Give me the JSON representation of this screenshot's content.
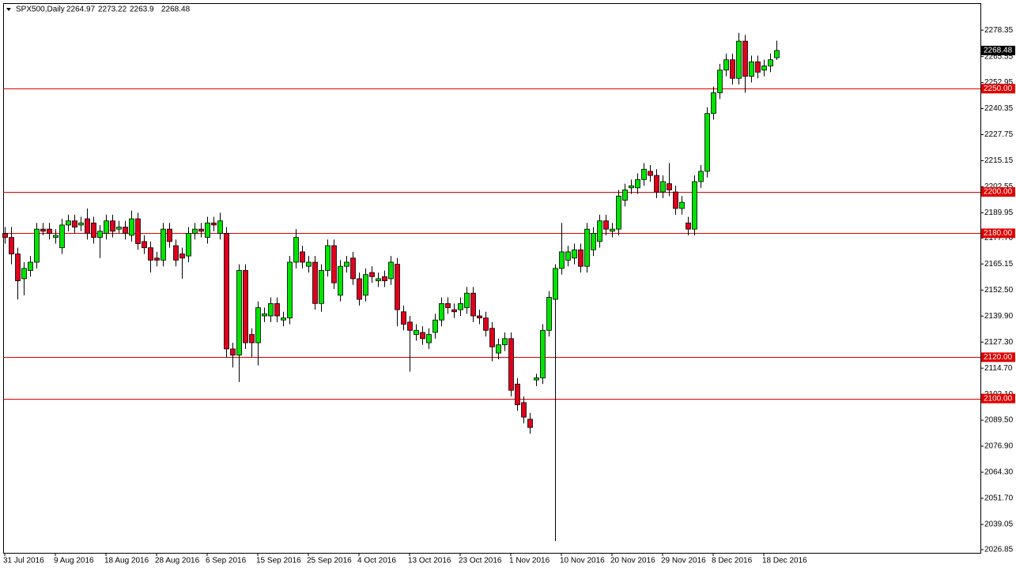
{
  "chart_data": {
    "type": "candlestick",
    "title": "SPX500,Daily",
    "categories": [
      "31 Jul 2016",
      null,
      null,
      null,
      null,
      null,
      null,
      null,
      "9 Aug 2016",
      null,
      null,
      null,
      null,
      null,
      null,
      null,
      "18 Aug 2016",
      null,
      null,
      null,
      null,
      null,
      null,
      null,
      "28 Aug 2016",
      null,
      null,
      null,
      null,
      null,
      null,
      null,
      "6 Sep 2016",
      null,
      null,
      null,
      null,
      null,
      null,
      null,
      "15 Sep 2016",
      null,
      null,
      null,
      null,
      null,
      null,
      null,
      "25 Sep 2016",
      null,
      null,
      null,
      null,
      null,
      null,
      null,
      "4 Oct 2016",
      null,
      null,
      null,
      null,
      null,
      null,
      null,
      "13 Oct 2016",
      null,
      null,
      null,
      null,
      null,
      null,
      null,
      "23 Oct 2016",
      null,
      null,
      null,
      null,
      null,
      null,
      null,
      "1 Nov 2016",
      null,
      null,
      null,
      null,
      null,
      null,
      null,
      "10 Nov 2016",
      null,
      null,
      null,
      null,
      null,
      null,
      null,
      "20 Nov 2016",
      null,
      null,
      null,
      null,
      null,
      null,
      null,
      "29 Nov 2016",
      null,
      null,
      null,
      null,
      null,
      null,
      null,
      "8 Dec 2016",
      null,
      null,
      null,
      null,
      null,
      null,
      null,
      "18 Dec 2016",
      null,
      null
    ],
    "open": [
      2180,
      2178,
      2170,
      2158,
      2162,
      2166,
      2182,
      2182,
      2178,
      2173,
      2184,
      2186,
      2184,
      2187,
      2185,
      2178,
      2180,
      2186,
      2182,
      2183,
      2179,
      2187,
      2176,
      2173,
      2168,
      2167,
      2182,
      2174,
      2170,
      2169,
      2180,
      2182,
      2178,
      2185,
      2180,
      2180,
      2124,
      2121,
      2162,
      2131,
      2127,
      2140,
      2140,
      2146,
      2138,
      2139,
      2166,
      2171,
      2164,
      2166,
      2146,
      2162,
      2174,
      2150,
      2164,
      2168,
      2158,
      2150,
      2161,
      2157,
      2159,
      2158,
      2165,
      2142,
      2137,
      2131,
      2132,
      2127,
      2132,
      2138,
      2146,
      2143,
      2143,
      2144,
      2151,
      2140,
      2139,
      2134,
      2122,
      2126,
      2129,
      2107,
      2098,
      2090,
      2109,
      2110,
      2133,
      2148,
      2163,
      2167,
      2168,
      2172,
      2164,
      2172,
      2176,
      2186,
      2181,
      2182,
      2196,
      2202,
      2202,
      2206,
      2210,
      2208,
      2200,
      2204,
      2200,
      2192,
      2185,
      2182,
      2205,
      2210,
      2238,
      2248,
      2259,
      2264,
      2255,
      2273,
      2256,
      2263,
      2259,
      2261,
      2264.97
    ],
    "high": [
      2183,
      2183,
      2173,
      2166,
      2169,
      2185,
      2185,
      2185,
      2182,
      2187,
      2189,
      2189,
      2188,
      2192,
      2188,
      2184,
      2189,
      2189,
      2186,
      2186,
      2191,
      2190,
      2179,
      2176,
      2171,
      2185,
      2185,
      2177,
      2173,
      2183,
      2185,
      2185,
      2188,
      2188,
      2190,
      2183,
      2127,
      2165,
      2165,
      2134,
      2147,
      2144,
      2149,
      2149,
      2142,
      2169,
      2182,
      2174,
      2169,
      2169,
      2165,
      2177,
      2177,
      2167,
      2169,
      2171,
      2161,
      2163,
      2164,
      2161,
      2162,
      2169,
      2168,
      2145,
      2140,
      2136,
      2135,
      2134,
      2141,
      2149,
      2149,
      2146,
      2149,
      2154,
      2154,
      2143,
      2142,
      2137,
      2129,
      2132,
      2132,
      2110,
      2101,
      2093,
      2112,
      2136,
      2152,
      2165,
      2185,
      2174,
      2175,
      2175,
      2185,
      2183,
      2189,
      2189,
      2185,
      2201,
      2204,
      2206,
      2209,
      2214,
      2213,
      2211,
      2208,
      2214,
      2203,
      2198,
      2188,
      2208,
      2213,
      2241,
      2251,
      2262,
      2267,
      2267,
      2277,
      2276,
      2266,
      2266,
      2264,
      2267,
      2273.22
    ],
    "low": [
      2175,
      2165,
      2148,
      2150,
      2159,
      2163,
      2179,
      2177,
      2175,
      2170,
      2181,
      2180,
      2181,
      2177,
      2175,
      2168,
      2177,
      2178,
      2180,
      2177,
      2176,
      2172,
      2170,
      2161,
      2164,
      2164,
      2173,
      2164,
      2158,
      2166,
      2177,
      2178,
      2175,
      2181,
      2177,
      2120,
      2115,
      2108,
      2124,
      2120,
      2116,
      2137,
      2137,
      2137,
      2135,
      2136,
      2163,
      2163,
      2161,
      2143,
      2142,
      2159,
      2153,
      2147,
      2161,
      2155,
      2145,
      2147,
      2156,
      2154,
      2154,
      2155,
      2135,
      2133,
      2113,
      2128,
      2126,
      2124,
      2129,
      2135,
      2141,
      2139,
      2140,
      2141,
      2137,
      2136,
      2130,
      2118,
      2119,
      2123,
      2101,
      2094,
      2088,
      2083,
      2106,
      2107,
      2130,
      2031,
      2160,
      2164,
      2165,
      2161,
      2161,
      2169,
      2173,
      2179,
      2178,
      2179,
      2193,
      2199,
      2199,
      2203,
      2205,
      2197,
      2197,
      2198,
      2189,
      2189,
      2179,
      2179,
      2202,
      2207,
      2235,
      2245,
      2256,
      2252,
      2252,
      2248,
      2253,
      2255,
      2256,
      2258,
      2263.9
    ],
    "close": [
      2178,
      2170,
      2157,
      2163,
      2166,
      2182,
      2181,
      2180,
      2179,
      2184,
      2186,
      2183,
      2185,
      2180,
      2178,
      2181,
      2186,
      2181,
      2183,
      2180,
      2187,
      2175,
      2173,
      2167,
      2167,
      2182,
      2176,
      2167,
      2168,
      2180,
      2182,
      2181,
      2185,
      2184,
      2186,
      2124,
      2121,
      2162,
      2127,
      2127,
      2144,
      2141,
      2146,
      2140,
      2139,
      2166,
      2178,
      2166,
      2166,
      2146,
      2162,
      2174,
      2156,
      2164,
      2166,
      2158,
      2148,
      2160,
      2159,
      2158,
      2157,
      2166,
      2143,
      2136,
      2133,
      2133,
      2129,
      2131,
      2138,
      2146,
      2144,
      2142,
      2146,
      2151,
      2140,
      2139,
      2133,
      2125,
      2126,
      2129,
      2104,
      2097,
      2091,
      2086,
      2110,
      2133,
      2149,
      2163,
      2171,
      2171,
      2172,
      2164,
      2182,
      2180,
      2186,
      2182,
      2182,
      2198,
      2201,
      2203,
      2206,
      2211,
      2208,
      2200,
      2205,
      2201,
      2192,
      2195,
      2182,
      2205,
      2210,
      2238,
      2248,
      2259,
      2264,
      2255,
      2273,
      2256,
      2263,
      2258,
      2261,
      2264,
      2268.48
    ],
    "ylim": [
      2025.3,
      2291.4
    ],
    "yticks": [
      2278.35,
      2265.55,
      2252.95,
      2240.35,
      2227.75,
      2215.15,
      2202.55,
      2189.95,
      {
        "value": 2177.7,
        "label": "2177.70"
      },
      2165.15,
      {
        "value": 2152.5,
        "label": "2152.50"
      },
      {
        "value": 2139.9,
        "label": "2139.90"
      },
      {
        "value": 2127.3,
        "label": "2127.30"
      },
      {
        "value": 2114.7,
        "label": "2114.70"
      },
      {
        "value": 2102.1,
        "label": "2102.10"
      },
      {
        "value": 2089.5,
        "label": "2089.50"
      },
      {
        "value": 2076.9,
        "label": "2076.90"
      },
      {
        "value": 2064.3,
        "label": "2064.30"
      },
      {
        "value": 2051.7,
        "label": "2051.70"
      },
      2039.05,
      2026.85
    ],
    "levels": [
      {
        "value": 2250,
        "label": "2250.00"
      },
      {
        "value": 2200,
        "label": "2200.00"
      },
      {
        "value": 2180,
        "label": "2180.00"
      },
      {
        "value": 2120,
        "label": "2120.00"
      },
      {
        "value": 2100,
        "label": "2100.00"
      }
    ],
    "up_color": "#00e400",
    "down_color": "#e0001c",
    "level_color": "#e00000"
  }
}
